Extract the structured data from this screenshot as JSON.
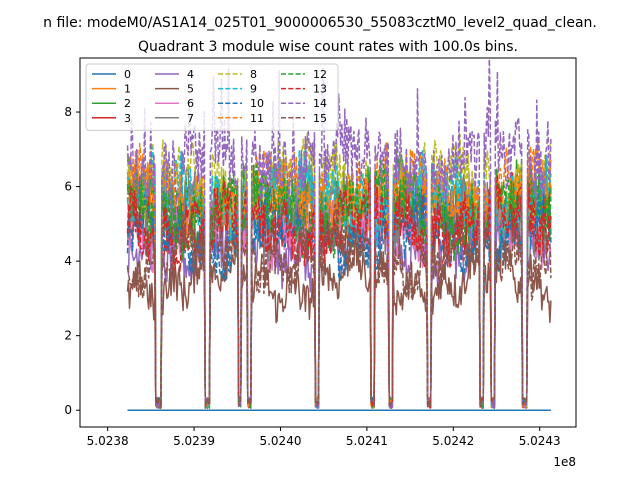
{
  "chart_data": {
    "type": "line",
    "suptitle": "n file: modeM0/AS1A14_025T01_9000006530_55083cztM0_level2_quad_clean.",
    "title": "Quadrant 3 module wise count rates with 100.0s bins.",
    "xlabel": "",
    "ylabel": "",
    "x_offset_label": "1e8",
    "xlim": [
      5.023768,
      5.024342
    ],
    "ylim": [
      -0.45,
      9.45
    ],
    "x_ticks": [
      5.0238,
      5.0239,
      5.024,
      5.0241,
      5.0242,
      5.0243
    ],
    "x_tick_labels": [
      "5.0238",
      "5.0239",
      "5.0240",
      "5.0241",
      "5.0242",
      "5.0243"
    ],
    "y_ticks": [
      0,
      2,
      4,
      6,
      8
    ],
    "y_tick_labels": [
      "0",
      "2",
      "4",
      "6",
      "8"
    ],
    "data_x_range": [
      5.023823,
      5.024313
    ],
    "gaps": [
      [
        5.023855,
        5.023862
      ],
      [
        5.023913,
        5.023918
      ],
      [
        5.023951,
        5.023955
      ],
      [
        5.023962,
        5.023966
      ],
      [
        5.02404,
        5.024045
      ],
      [
        5.024104,
        5.024109
      ],
      [
        5.024125,
        5.02413
      ],
      [
        5.02417,
        5.024175
      ],
      [
        5.02423,
        5.024235
      ],
      [
        5.024243,
        5.024248
      ],
      [
        5.02428,
        5.024285
      ]
    ],
    "legend": {
      "placement": "top-left",
      "columns": 4
    },
    "series": [
      {
        "name": "0",
        "color": "#1f77b4",
        "style": "solid",
        "level": 0.0
      },
      {
        "name": "1",
        "color": "#ff7f0e",
        "style": "solid",
        "level": 5.5
      },
      {
        "name": "2",
        "color": "#2ca02c",
        "style": "solid",
        "level": 5.6
      },
      {
        "name": "3",
        "color": "#d62728",
        "style": "solid",
        "level": 5.1
      },
      {
        "name": "4",
        "color": "#9467bd",
        "style": "solid",
        "level": 4.4
      },
      {
        "name": "5",
        "color": "#8c564b",
        "style": "solid",
        "level": 3.5
      },
      {
        "name": "6",
        "color": "#e377c2",
        "style": "solid",
        "level": 5.0
      },
      {
        "name": "7",
        "color": "#7f7f7f",
        "style": "solid",
        "level": 5.3
      },
      {
        "name": "8",
        "color": "#bcbd22",
        "style": "dashed",
        "level": 6.1
      },
      {
        "name": "9",
        "color": "#17becf",
        "style": "dashed",
        "level": 5.7
      },
      {
        "name": "10",
        "color": "#1f77b4",
        "style": "dashed",
        "level": 4.7
      },
      {
        "name": "11",
        "color": "#ff7f0e",
        "style": "dashed",
        "level": 5.9
      },
      {
        "name": "12",
        "color": "#2ca02c",
        "style": "dashed",
        "level": 5.4
      },
      {
        "name": "13",
        "color": "#d62728",
        "style": "dashed",
        "level": 5.0
      },
      {
        "name": "14",
        "color": "#9467bd",
        "style": "dashed",
        "level": 6.7
      },
      {
        "name": "15",
        "color": "#8c564b",
        "style": "dashed",
        "level": 4.2
      }
    ]
  }
}
